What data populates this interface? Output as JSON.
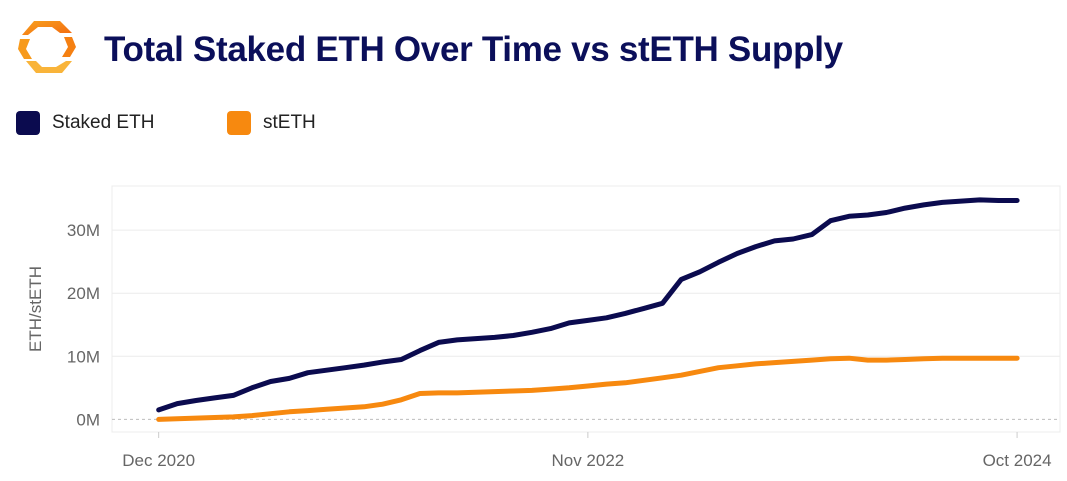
{
  "header": {
    "title": "Total Staked ETH Over Time vs stETH Supply",
    "logo_icon": "lido-logo-icon"
  },
  "legend": [
    {
      "label": "Staked ETH",
      "color": "#0b0b4f"
    },
    {
      "label": "stETH",
      "color": "#f7890f"
    }
  ],
  "chart_data": {
    "type": "line",
    "title": "Total Staked ETH Over Time vs stETH Supply",
    "xlabel": "",
    "ylabel": "ETH/stETH",
    "x_ticks": [
      "Dec 2020",
      "Nov 2022",
      "Oct 2024"
    ],
    "x_tick_months": [
      0,
      23,
      46
    ],
    "y_ticks": [
      "0M",
      "10M",
      "20M",
      "30M"
    ],
    "ylim": [
      -2,
      37
    ],
    "xlim": [
      -2.5,
      48.3
    ],
    "grid": true,
    "legend_position": "top-left",
    "months": [
      "2020-12",
      "2021-01",
      "2021-02",
      "2021-03",
      "2021-04",
      "2021-05",
      "2021-06",
      "2021-07",
      "2021-08",
      "2021-09",
      "2021-10",
      "2021-11",
      "2021-12",
      "2022-01",
      "2022-02",
      "2022-03",
      "2022-04",
      "2022-05",
      "2022-06",
      "2022-07",
      "2022-08",
      "2022-09",
      "2022-10",
      "2022-11",
      "2022-12",
      "2023-01",
      "2023-02",
      "2023-03",
      "2023-04",
      "2023-05",
      "2023-06",
      "2023-07",
      "2023-08",
      "2023-09",
      "2023-10",
      "2023-11",
      "2023-12",
      "2024-01",
      "2024-02",
      "2024-03",
      "2024-04",
      "2024-05",
      "2024-06",
      "2024-07",
      "2024-08",
      "2024-09",
      "2024-10"
    ],
    "series": [
      {
        "name": "Staked ETH",
        "color": "#0b0b4f",
        "unit": "M",
        "values": [
          1.5,
          2.5,
          3.0,
          3.4,
          3.8,
          5.0,
          6.0,
          6.5,
          7.4,
          7.8,
          8.2,
          8.6,
          9.1,
          9.5,
          10.9,
          12.2,
          12.6,
          12.8,
          13.0,
          13.3,
          13.8,
          14.4,
          15.3,
          15.7,
          16.1,
          16.8,
          17.6,
          18.4,
          22.2,
          23.4,
          24.9,
          26.3,
          27.4,
          28.3,
          28.6,
          29.3,
          31.5,
          32.2,
          32.4,
          32.8,
          33.5,
          34.0,
          34.4,
          34.6,
          34.8,
          34.7,
          34.7
        ]
      },
      {
        "name": "stETH",
        "color": "#f7890f",
        "unit": "M",
        "values": [
          0.0,
          0.1,
          0.2,
          0.3,
          0.4,
          0.6,
          0.9,
          1.2,
          1.4,
          1.6,
          1.8,
          2.0,
          2.4,
          3.1,
          4.1,
          4.2,
          4.2,
          4.3,
          4.4,
          4.5,
          4.6,
          4.8,
          5.0,
          5.3,
          5.6,
          5.8,
          6.2,
          6.6,
          7.0,
          7.6,
          8.2,
          8.5,
          8.8,
          9.0,
          9.2,
          9.4,
          9.6,
          9.7,
          9.4,
          9.4,
          9.5,
          9.6,
          9.7,
          9.7,
          9.7,
          9.7,
          9.7
        ]
      }
    ]
  }
}
